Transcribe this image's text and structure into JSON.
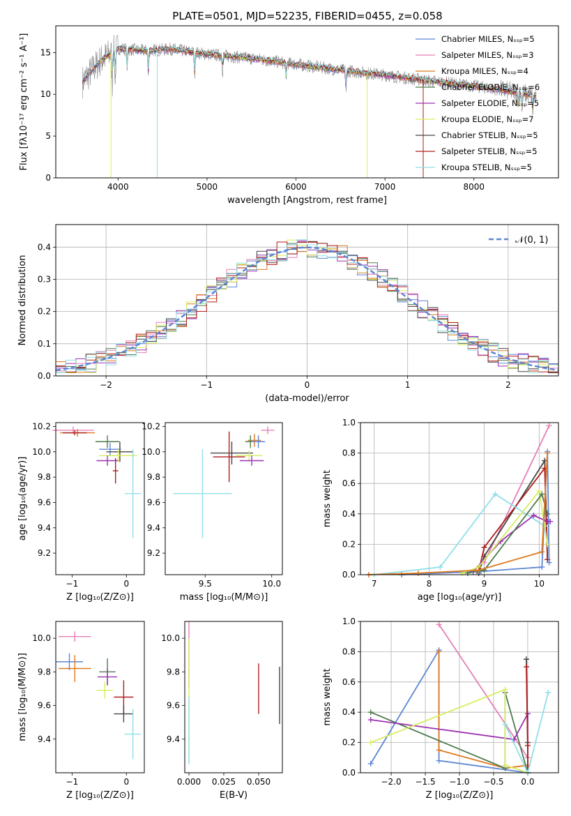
{
  "figure": {
    "title": "PLATE=0501, MJD=52235, FIBERID=0455, z=0.058"
  },
  "chart_data": [
    {
      "type": "line",
      "panel": "spectrum",
      "xlabel": "wavelength [Angstrom, rest frame]",
      "ylabel": "Flux [fλ10⁻¹⁷ erg cm⁻² s⁻¹ A⁻¹]",
      "xlim": [
        3300,
        8950
      ],
      "ylim": [
        0,
        18.2
      ],
      "xticks": [
        4000,
        5000,
        6000,
        7000,
        8000
      ],
      "yticks": [
        0,
        5,
        10,
        15
      ],
      "grid": false,
      "legend_position": "top-right",
      "continuum_knots": [
        [
          3600,
          11.5
        ],
        [
          3800,
          14.0
        ],
        [
          4000,
          15.5
        ],
        [
          4300,
          15.2
        ],
        [
          4600,
          15.4
        ],
        [
          5000,
          14.8
        ],
        [
          5500,
          14.3
        ],
        [
          6000,
          13.6
        ],
        [
          6500,
          12.9
        ],
        [
          7000,
          12.3
        ],
        [
          7500,
          11.6
        ],
        [
          8000,
          11.0
        ],
        [
          8500,
          10.2
        ],
        [
          8700,
          9.8
        ]
      ],
      "series": [
        {
          "name": "Chabrier MILES, Nₛₛₚ=5",
          "color": "#5b86d3",
          "n_ssp": 5
        },
        {
          "name": "Salpeter MILES, Nₛₛₚ=3",
          "color": "#e57fb7",
          "n_ssp": 3
        },
        {
          "name": "Kroupa MILES, Nₛₛₚ=4",
          "color": "#e0781e",
          "n_ssp": 4
        },
        {
          "name": "Chabrier ELODIE, Nₛₛₚ=6",
          "color": "#4e7a4e",
          "n_ssp": 6
        },
        {
          "name": "Salpeter ELODIE, Nₛₛₚ=5",
          "color": "#9b31b0",
          "n_ssp": 5
        },
        {
          "name": "Kroupa ELODIE, Nₛₛₚ=7",
          "color": "#d7ed5d",
          "n_ssp": 7
        },
        {
          "name": "Chabrier STELIB, Nₛₛₚ=5",
          "color": "#444444",
          "n_ssp": 5
        },
        {
          "name": "Salpeter STELIB, Nₛₛₚ=5",
          "color": "#b01c1c",
          "n_ssp": 5
        },
        {
          "name": "Kroupa STELIB, Nₛₛₚ=5",
          "color": "#8fdfe6",
          "n_ssp": 5
        }
      ],
      "observed_color": "#888888"
    },
    {
      "type": "line",
      "panel": "residuals",
      "xlabel": "(data-model)/error",
      "ylabel": "Normed distribution",
      "xlim": [
        -2.5,
        2.5
      ],
      "ylim": [
        0,
        0.47
      ],
      "xticks": [
        -2,
        -1,
        0,
        1,
        2
      ],
      "yticks": [
        0.0,
        0.1,
        0.2,
        0.3,
        0.4
      ],
      "grid": true,
      "legend_position": "top-right",
      "reference": {
        "name": "𝒩(0, 1)",
        "color": "#5b86d3",
        "style": "dashed"
      },
      "bin_width": 0.1
    },
    {
      "type": "scatter",
      "panel": "age-vs-Z",
      "xlabel": "Z [log₁₀(Z/Z⊙)]",
      "ylabel": "age  [log₁₀(age/yr)]",
      "xlim": [
        -1.3,
        0.33
      ],
      "ylim": [
        9.03,
        10.23
      ],
      "xticks": [
        -1,
        0
      ],
      "yticks": [
        9.2,
        9.4,
        9.6,
        9.8,
        10.0,
        10.2
      ],
      "points": [
        {
          "x": -0.98,
          "y": 10.17,
          "xerr": 0.38,
          "yerr": 0.03,
          "color": "#e57fb7"
        },
        {
          "x": -0.9,
          "y": 10.15,
          "xerr": 0.32,
          "yerr": 0.03,
          "color": "#e0781e"
        },
        {
          "x": -0.95,
          "y": 10.15,
          "xerr": 0.22,
          "yerr": 0.02,
          "color": "#b01c1c"
        },
        {
          "x": -0.35,
          "y": 10.08,
          "xerr": 0.22,
          "yerr": 0.05,
          "color": "#4e7a4e"
        },
        {
          "x": -0.3,
          "y": 10.02,
          "xerr": 0.2,
          "yerr": 0.05,
          "color": "#5b86d3"
        },
        {
          "x": -0.12,
          "y": 10.0,
          "xerr": 0.25,
          "yerr": 0.08,
          "color": "#444444"
        },
        {
          "x": -0.15,
          "y": 9.97,
          "xerr": 0.35,
          "yerr": 0.05,
          "color": "#d7ed5d"
        },
        {
          "x": -0.35,
          "y": 9.93,
          "xerr": 0.2,
          "yerr": 0.04,
          "color": "#9b31b0"
        },
        {
          "x": -0.2,
          "y": 9.85,
          "xerr": 0.05,
          "yerr": 0.1,
          "color": "#b01c1c"
        },
        {
          "x": 0.12,
          "y": 9.67,
          "xerr": 0.15,
          "yerr": 0.35,
          "color": "#8fdfe6"
        }
      ]
    },
    {
      "type": "scatter",
      "panel": "age-vs-mass",
      "xlabel": "mass [log₁₀(M/M⊙)]",
      "ylabel": "",
      "xlim": [
        9.2,
        10.08
      ],
      "ylim": [
        9.03,
        10.23
      ],
      "xticks": [
        9.5,
        10.0
      ],
      "yticks": [
        9.2,
        9.4,
        9.6,
        9.8,
        10.0,
        10.2
      ],
      "points": [
        {
          "x": 9.97,
          "y": 10.17,
          "xerr": 0.05,
          "yerr": 0.03,
          "color": "#e57fb7"
        },
        {
          "x": 9.87,
          "y": 10.09,
          "xerr": 0.05,
          "yerr": 0.05,
          "color": "#e0781e"
        },
        {
          "x": 9.84,
          "y": 10.08,
          "xerr": 0.04,
          "yerr": 0.05,
          "color": "#4e7a4e"
        },
        {
          "x": 9.9,
          "y": 10.08,
          "xerr": 0.05,
          "yerr": 0.05,
          "color": "#5b86d3"
        },
        {
          "x": 9.7,
          "y": 9.99,
          "xerr": 0.16,
          "yerr": 0.09,
          "color": "#444444"
        },
        {
          "x": 9.83,
          "y": 9.97,
          "xerr": 0.1,
          "yerr": 0.04,
          "color": "#d7ed5d"
        },
        {
          "x": 9.85,
          "y": 9.93,
          "xerr": 0.09,
          "yerr": 0.04,
          "color": "#9b31b0"
        },
        {
          "x": 9.68,
          "y": 9.96,
          "xerr": 0.12,
          "yerr": 0.2,
          "color": "#b01c1c"
        },
        {
          "x": 9.48,
          "y": 9.67,
          "xerr": 0.22,
          "yerr": 0.35,
          "color": "#8fdfe6"
        }
      ]
    },
    {
      "type": "line",
      "panel": "mass-weight-vs-age",
      "xlabel": "age  [log₁₀(age/yr)]",
      "ylabel": "mass weight",
      "xlim": [
        6.75,
        10.35
      ],
      "ylim": [
        0,
        1.0
      ],
      "xticks": [
        7,
        8,
        9,
        10
      ],
      "yticks": [
        0.0,
        0.2,
        0.4,
        0.6,
        0.8,
        1.0
      ],
      "grid": true,
      "series": [
        {
          "color": "#e57fb7",
          "x": [
            9.0,
            10.18
          ],
          "y": [
            0.08,
            0.98
          ]
        },
        {
          "color": "#444444",
          "x": [
            8.9,
            9.0,
            10.1,
            10.15
          ],
          "y": [
            0.01,
            0.12,
            0.75,
            0.1
          ]
        },
        {
          "color": "#b01c1c",
          "x": [
            8.9,
            9.0,
            10.1,
            10.15
          ],
          "y": [
            0.02,
            0.18,
            0.7,
            0.1
          ]
        },
        {
          "color": "#5b86d3",
          "x": [
            7.5,
            8.9,
            10.05,
            10.15,
            10.18
          ],
          "y": [
            0.0,
            0.02,
            0.05,
            0.81,
            0.08
          ]
        },
        {
          "color": "#8fdfe6",
          "x": [
            7.0,
            8.2,
            9.2,
            10.1,
            10.15
          ],
          "y": [
            0.0,
            0.05,
            0.53,
            0.32,
            0.2
          ]
        },
        {
          "color": "#9b31b0",
          "x": [
            8.8,
            9.3,
            9.9,
            10.15,
            10.2
          ],
          "y": [
            0.02,
            0.22,
            0.39,
            0.35,
            0.35
          ]
        },
        {
          "color": "#d7ed5d",
          "x": [
            8.6,
            8.9,
            10.0,
            10.15
          ],
          "y": [
            0.01,
            0.05,
            0.55,
            0.2
          ]
        },
        {
          "color": "#4e7a4e",
          "x": [
            8.7,
            9.0,
            10.05,
            10.15
          ],
          "y": [
            0.01,
            0.03,
            0.53,
            0.4
          ]
        },
        {
          "color": "#e0781e",
          "x": [
            6.9,
            7.8,
            8.9,
            10.05,
            10.15
          ],
          "y": [
            0.0,
            0.01,
            0.03,
            0.15,
            0.8
          ]
        }
      ]
    },
    {
      "type": "scatter",
      "panel": "mass-vs-Z",
      "xlabel": "Z [log₁₀(Z/Z⊙)]",
      "ylabel": "mass [log₁₀(M/M⊙)]",
      "xlim": [
        -1.3,
        0.33
      ],
      "ylim": [
        9.2,
        10.1
      ],
      "xticks": [
        -1,
        0
      ],
      "yticks": [
        9.4,
        9.6,
        9.8,
        10.0
      ],
      "points": [
        {
          "x": -0.95,
          "y": 10.01,
          "xerr": 0.3,
          "yerr": 0.03,
          "color": "#e57fb7"
        },
        {
          "x": -1.05,
          "y": 9.86,
          "xerr": 0.25,
          "yerr": 0.05,
          "color": "#5b86d3"
        },
        {
          "x": -0.95,
          "y": 9.82,
          "xerr": 0.3,
          "yerr": 0.08,
          "color": "#e0781e"
        },
        {
          "x": -0.35,
          "y": 9.8,
          "xerr": 0.15,
          "yerr": 0.08,
          "color": "#4e7a4e"
        },
        {
          "x": -0.35,
          "y": 9.77,
          "xerr": 0.18,
          "yerr": 0.05,
          "color": "#9b31b0"
        },
        {
          "x": -0.4,
          "y": 9.69,
          "xerr": 0.15,
          "yerr": 0.05,
          "color": "#d7ed5d"
        },
        {
          "x": -0.05,
          "y": 9.65,
          "xerr": 0.18,
          "yerr": 0.1,
          "color": "#b01c1c"
        },
        {
          "x": -0.05,
          "y": 9.55,
          "xerr": 0.18,
          "yerr": 0.05,
          "color": "#444444"
        },
        {
          "x": 0.12,
          "y": 9.43,
          "xerr": 0.15,
          "yerr": 0.15,
          "color": "#8fdfe6"
        }
      ]
    },
    {
      "type": "scatter",
      "panel": "mass-vs-EBV",
      "xlabel": "E(B-V)",
      "ylabel": "",
      "xlim": [
        -0.003,
        0.067
      ],
      "ylim": [
        9.2,
        10.1
      ],
      "xticks": [
        0.0,
        0.025,
        0.05
      ],
      "xtick_labels": [
        "0.000",
        "0.025",
        "0.050"
      ],
      "yticks": [
        9.4,
        9.6,
        9.8,
        10.0
      ],
      "points": [
        {
          "x": 0.0,
          "y": 9.9,
          "xerr": 0.0,
          "yerr": 0.2,
          "color": "#e57fb7"
        },
        {
          "x": 0.0,
          "y": 9.65,
          "xerr": 0.0,
          "yerr": 0.35,
          "color": "#d7ed5d"
        },
        {
          "x": 0.0,
          "y": 9.45,
          "xerr": 0.0,
          "yerr": 0.2,
          "color": "#8fdfe6"
        },
        {
          "x": 0.05,
          "y": 9.7,
          "xerr": 0.0,
          "yerr": 0.15,
          "color": "#b01c1c"
        },
        {
          "x": 0.065,
          "y": 9.66,
          "xerr": 0.0,
          "yerr": 0.17,
          "color": "#444444"
        }
      ]
    },
    {
      "type": "line",
      "panel": "mass-weight-vs-Z",
      "xlabel": "Z [log₁₀(Z/Z⊙)]",
      "ylabel": "mass weight",
      "xlim": [
        -2.45,
        0.45
      ],
      "ylim": [
        0,
        1.0
      ],
      "xticks": [
        -2.0,
        -1.5,
        -1.0,
        -0.5,
        0.0
      ],
      "xtick_labels": [
        "−2.0",
        "−1.5",
        "−1.0",
        "−0.5",
        "0.0"
      ],
      "yticks": [
        0.0,
        0.2,
        0.4,
        0.6,
        0.8,
        1.0
      ],
      "grid": true,
      "series": [
        {
          "color": "#5b86d3",
          "x": [
            -2.3,
            -1.3,
            -1.3,
            0.0
          ],
          "y": [
            0.06,
            0.81,
            0.08,
            0.0
          ]
        },
        {
          "color": "#e57fb7",
          "x": [
            -1.3,
            0.0
          ],
          "y": [
            0.98,
            0.1
          ]
        },
        {
          "color": "#e0781e",
          "x": [
            -1.3,
            -1.3,
            -0.33,
            0.0
          ],
          "y": [
            0.8,
            0.15,
            0.03,
            0.05
          ]
        },
        {
          "color": "#4e7a4e",
          "x": [
            -2.3,
            -0.33,
            -0.33,
            0.0
          ],
          "y": [
            0.4,
            0.03,
            0.53,
            0.0
          ]
        },
        {
          "color": "#9b31b0",
          "x": [
            -2.3,
            -0.2,
            0.0,
            0.0
          ],
          "y": [
            0.35,
            0.22,
            0.39,
            0.0
          ]
        },
        {
          "color": "#d7ed5d",
          "x": [
            -2.3,
            -0.33,
            -0.33,
            0.0
          ],
          "y": [
            0.2,
            0.55,
            0.05,
            0.0
          ]
        },
        {
          "color": "#444444",
          "x": [
            -0.02,
            0.0,
            0.0
          ],
          "y": [
            0.75,
            0.2,
            0.0
          ]
        },
        {
          "color": "#b01c1c",
          "x": [
            -0.02,
            0.0,
            0.0
          ],
          "y": [
            0.7,
            0.18,
            0.0
          ]
        },
        {
          "color": "#8fdfe6",
          "x": [
            -0.33,
            0.0,
            0.3
          ],
          "y": [
            0.32,
            0.0,
            0.53
          ]
        }
      ]
    }
  ]
}
